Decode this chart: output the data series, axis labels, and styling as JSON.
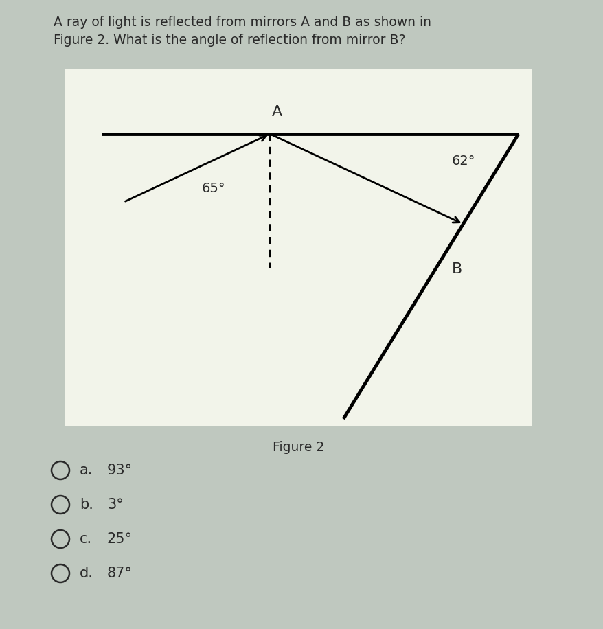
{
  "bg_outer": "#bfc8bf",
  "bg_inner": "#f2f4ea",
  "title_text": "A ray of light is reflected from mirrors A and B as shown in\nFigure 2. What is the angle of reflection from mirror B?",
  "figure_label": "Figure 2",
  "mirror_A_label": "A",
  "mirror_B_label": "B",
  "angle_A_label": "62°",
  "angle_inc_label": "65°",
  "choices": [
    {
      "letter": "a.",
      "text": "93°"
    },
    {
      "letter": "b.",
      "text": "3°"
    },
    {
      "letter": "c.",
      "text": "25°"
    },
    {
      "letter": "d.",
      "text": "87°"
    }
  ],
  "line_color": "#000000",
  "text_color": "#2a2a2a",
  "title_fontsize": 13.5,
  "label_fontsize": 14,
  "choice_fontsize": 15
}
